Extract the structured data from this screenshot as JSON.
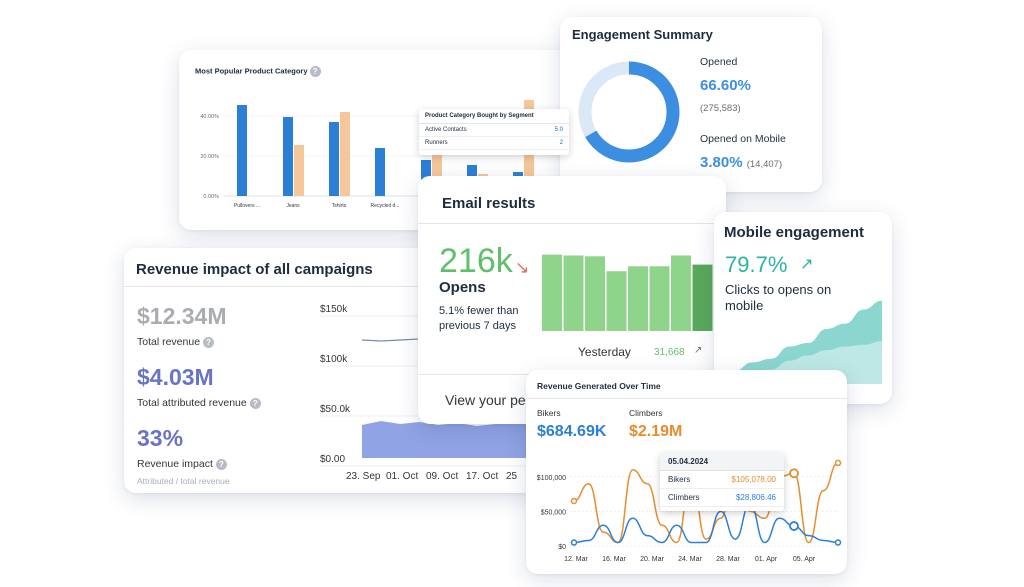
{
  "popular": {
    "title": "Most Popular Product Category",
    "help_icon": "help-icon",
    "chart_data": {
      "type": "bar",
      "categories": [
        "Pullovers ...",
        "Jeans",
        "Tshirts",
        "Recycled d...",
        "",
        "",
        ""
      ],
      "series": [
        {
          "color": "#2c7fd7",
          "values": [
            45.5,
            39.5,
            37,
            24,
            18,
            15.5,
            12
          ]
        },
        {
          "color": "#f5c79a",
          "values": [
            null,
            25.5,
            42,
            null,
            28,
            11,
            48
          ]
        }
      ],
      "yticks": [
        "0.00%",
        "20.00%",
        "40.00%"
      ],
      "ylim": [
        0,
        50
      ]
    }
  },
  "segment_tooltip": {
    "title": "Product Category Bought by Segment",
    "rows": [
      {
        "label": "Active Contacts",
        "value": "5.0"
      },
      {
        "label": "Runners",
        "value": "2"
      }
    ]
  },
  "engagement": {
    "title": "Engagement Summary",
    "opened_label": "Opened",
    "opened_value": "66.60%",
    "opened_count": "(275,583)",
    "mobile_label": "Opened on Mobile",
    "mobile_value": "3.80%",
    "mobile_count": "(14,407)",
    "opened_fraction": 0.666,
    "colors": {
      "main": "#3c8fe0",
      "track": "#dbe8f8"
    }
  },
  "revenue_impact": {
    "title": "Revenue impact of all campaigns",
    "total_revenue_value": "$12.34M",
    "total_revenue_label": "Total revenue",
    "attributed_value": "$4.03M",
    "attributed_label": "Total attributed revenue",
    "impact_value": "33%",
    "impact_label": "Revenue impact",
    "impact_note": "Attributed / total revenue",
    "chart_data": {
      "type": "area",
      "yticks": [
        "$0.00",
        "$50.0k",
        "$100k",
        "$150k"
      ],
      "xticks": [
        "23. Sep",
        "01. Oct",
        "09. Oct",
        "17. Oct",
        "25"
      ],
      "series": [
        {
          "color": "#7d93e0",
          "values": [
            33,
            37,
            34,
            36,
            33,
            35,
            32,
            34,
            36,
            33
          ]
        },
        {
          "color": "#7b8ca8",
          "values": [
            118,
            117,
            118,
            119,
            117,
            119,
            118,
            120,
            119,
            119
          ]
        }
      ],
      "ylim": [
        0,
        150
      ]
    }
  },
  "email": {
    "title": "Email results",
    "value": "216k",
    "trend_icon": "trend-down-arrow-icon",
    "label": "Opens",
    "description": "5.1% fewer than previous 7 days",
    "yesterday_label": "Yesterday",
    "yesterday_count": "31,668",
    "count_arrow_icon": "arrow-up-icon",
    "footer_text": "View your pe",
    "chart_data": {
      "type": "bar",
      "values": [
        92,
        91,
        90,
        72,
        78,
        78,
        91,
        80
      ],
      "colors": {
        "bar": "#8fd48b",
        "last": "#5aa85b"
      },
      "ylim": [
        0,
        100
      ]
    }
  },
  "mobile": {
    "title": "Mobile engagement",
    "value": "79.7%",
    "trend_icon": "trend-up-arrow-icon",
    "description": "Clicks to opens on mobile",
    "chart_data": {
      "type": "area",
      "series": [
        {
          "color": "#7fd1cb",
          "values": [
            10,
            20,
            24,
            38,
            42,
            58,
            64,
            80,
            90
          ]
        },
        {
          "color": "#c9ecea",
          "values": [
            4,
            10,
            12,
            22,
            28,
            34,
            38,
            40,
            44
          ]
        }
      ],
      "ylim": [
        0,
        100
      ]
    }
  },
  "revenue_time": {
    "title": "Revenue Generated Over Time",
    "bikers_label": "Bikers",
    "bikers_value": "$684.69K",
    "climbers_label": "Climbers",
    "climbers_value": "$2.19M",
    "tooltip": {
      "date": "05.04.2024",
      "rows": [
        {
          "label": "Bikers",
          "value": "$105,078.00",
          "color": "#e78c2f"
        },
        {
          "label": "Climbers",
          "value": "$28,806.46",
          "color": "#2c7fd7"
        }
      ]
    },
    "chart_data": {
      "type": "line",
      "yticks": [
        "$0",
        "$50,000",
        "$100,000"
      ],
      "xticks": [
        "12. Mar",
        "16. Mar",
        "20. Mar",
        "24. Mar",
        "28. Mar",
        "01. Apr",
        "05. Apr"
      ],
      "ylim": [
        0,
        130000
      ],
      "series": [
        {
          "name": "Bikers",
          "color": "#e78c2f",
          "values": [
            65000,
            90000,
            20000,
            5000,
            110000,
            90000,
            30000,
            5000,
            100000,
            10000,
            40000,
            110000,
            50000,
            40000,
            100000,
            105000,
            5000,
            80000,
            120000
          ]
        },
        {
          "name": "Climbers",
          "color": "#2c7fd7",
          "values": [
            5000,
            8000,
            30000,
            5000,
            40000,
            15000,
            5000,
            30000,
            5000,
            5000,
            50000,
            10000,
            60000,
            5000,
            40000,
            28806,
            15000,
            8000,
            5000
          ]
        }
      ]
    }
  }
}
